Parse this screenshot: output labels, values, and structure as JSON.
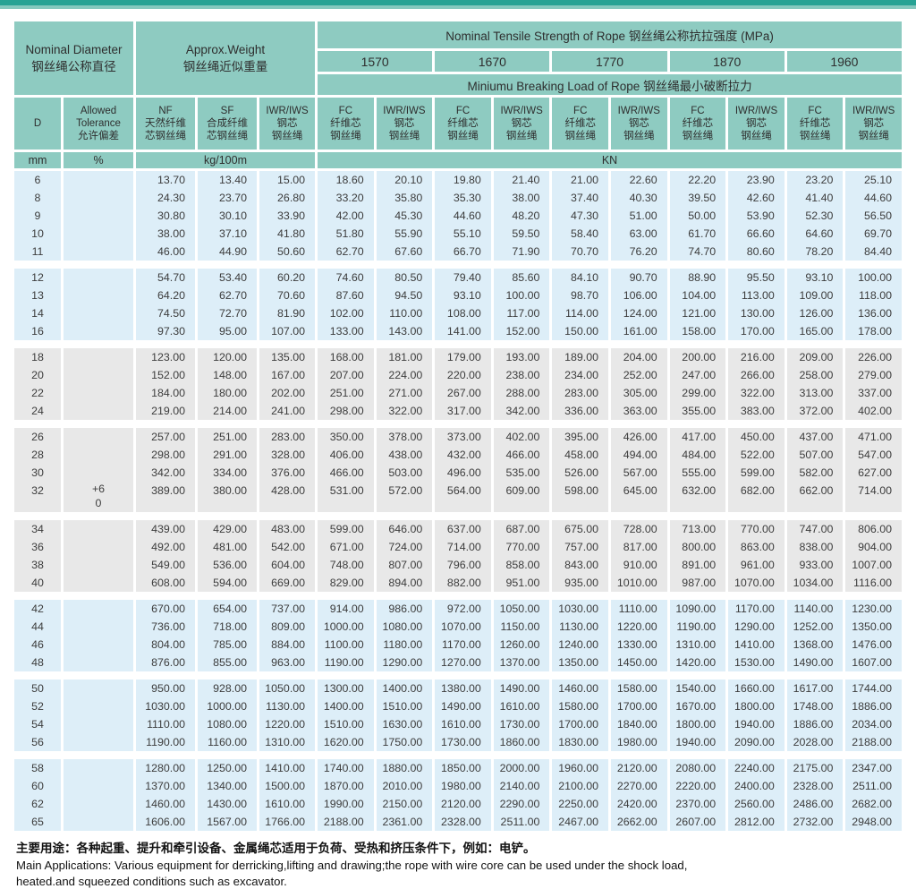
{
  "colors": {
    "header_teal": "#8ecbc1",
    "band_blue": "#ddeef8",
    "band_gray": "#e8e8e8",
    "topbar_dark": "#27a294",
    "topbar_light": "#85c8be"
  },
  "header": {
    "nominal_diameter_en": "Nominal Diameter",
    "nominal_diameter_cn": "钢丝绳公称直径",
    "approx_weight_en": "Approx.Weight",
    "approx_weight_cn": "钢丝绳近似重量",
    "tensile_title": "Nominal Tensile Strength of Rope 钢丝绳公称抗拉强度 (MPa)",
    "strength_grades": [
      "1570",
      "1670",
      "1770",
      "1870",
      "1960"
    ],
    "breaking_title": "Miniumu Breaking Load of Rope 钢丝绳最小破断拉力",
    "col_d": "D",
    "col_tolerance": [
      "Allowed",
      "Tolerance",
      "允许偏差"
    ],
    "col_nf": [
      "NF",
      "天然纤维",
      "芯钢丝绳"
    ],
    "col_sf": [
      "SF",
      "合成纤维",
      "芯钢丝绳"
    ],
    "col_iwr": [
      "IWR/IWS",
      "钢芯",
      "钢丝绳"
    ],
    "col_fc": [
      "FC",
      "纤维芯",
      "钢丝绳"
    ],
    "unit_mm": "mm",
    "unit_pct": "%",
    "unit_kg": "kg/100m",
    "unit_kn": "KN"
  },
  "tolerance": {
    "band_index": 3,
    "lines": [
      "+6",
      "0"
    ]
  },
  "bands": [
    {
      "bg": "blue",
      "rows": [
        [
          "6",
          "13.70",
          "13.40",
          "15.00",
          "18.60",
          "20.10",
          "19.80",
          "21.40",
          "21.00",
          "22.60",
          "22.20",
          "23.90",
          "23.20",
          "25.10"
        ],
        [
          "8",
          "24.30",
          "23.70",
          "26.80",
          "33.20",
          "35.80",
          "35.30",
          "38.00",
          "37.40",
          "40.30",
          "39.50",
          "42.60",
          "41.40",
          "44.60"
        ],
        [
          "9",
          "30.80",
          "30.10",
          "33.90",
          "42.00",
          "45.30",
          "44.60",
          "48.20",
          "47.30",
          "51.00",
          "50.00",
          "53.90",
          "52.30",
          "56.50"
        ],
        [
          "10",
          "38.00",
          "37.10",
          "41.80",
          "51.80",
          "55.90",
          "55.10",
          "59.50",
          "58.40",
          "63.00",
          "61.70",
          "66.60",
          "64.60",
          "69.70"
        ],
        [
          "11",
          "46.00",
          "44.90",
          "50.60",
          "62.70",
          "67.60",
          "66.70",
          "71.90",
          "70.70",
          "76.20",
          "74.70",
          "80.60",
          "78.20",
          "84.40"
        ]
      ]
    },
    {
      "bg": "blue",
      "rows": [
        [
          "12",
          "54.70",
          "53.40",
          "60.20",
          "74.60",
          "80.50",
          "79.40",
          "85.60",
          "84.10",
          "90.70",
          "88.90",
          "95.50",
          "93.10",
          "100.00"
        ],
        [
          "13",
          "64.20",
          "62.70",
          "70.60",
          "87.60",
          "94.50",
          "93.10",
          "100.00",
          "98.70",
          "106.00",
          "104.00",
          "113.00",
          "109.00",
          "118.00"
        ],
        [
          "14",
          "74.50",
          "72.70",
          "81.90",
          "102.00",
          "110.00",
          "108.00",
          "117.00",
          "114.00",
          "124.00",
          "121.00",
          "130.00",
          "126.00",
          "136.00"
        ],
        [
          "16",
          "97.30",
          "95.00",
          "107.00",
          "133.00",
          "143.00",
          "141.00",
          "152.00",
          "150.00",
          "161.00",
          "158.00",
          "170.00",
          "165.00",
          "178.00"
        ]
      ]
    },
    {
      "bg": "gray",
      "rows": [
        [
          "18",
          "123.00",
          "120.00",
          "135.00",
          "168.00",
          "181.00",
          "179.00",
          "193.00",
          "189.00",
          "204.00",
          "200.00",
          "216.00",
          "209.00",
          "226.00"
        ],
        [
          "20",
          "152.00",
          "148.00",
          "167.00",
          "207.00",
          "224.00",
          "220.00",
          "238.00",
          "234.00",
          "252.00",
          "247.00",
          "266.00",
          "258.00",
          "279.00"
        ],
        [
          "22",
          "184.00",
          "180.00",
          "202.00",
          "251.00",
          "271.00",
          "267.00",
          "288.00",
          "283.00",
          "305.00",
          "299.00",
          "322.00",
          "313.00",
          "337.00"
        ],
        [
          "24",
          "219.00",
          "214.00",
          "241.00",
          "298.00",
          "322.00",
          "317.00",
          "342.00",
          "336.00",
          "363.00",
          "355.00",
          "383.00",
          "372.00",
          "402.00"
        ]
      ]
    },
    {
      "bg": "gray",
      "extra": true,
      "rows": [
        [
          "26",
          "257.00",
          "251.00",
          "283.00",
          "350.00",
          "378.00",
          "373.00",
          "402.00",
          "395.00",
          "426.00",
          "417.00",
          "450.00",
          "437.00",
          "471.00"
        ],
        [
          "28",
          "298.00",
          "291.00",
          "328.00",
          "406.00",
          "438.00",
          "432.00",
          "466.00",
          "458.00",
          "494.00",
          "484.00",
          "522.00",
          "507.00",
          "547.00"
        ],
        [
          "30",
          "342.00",
          "334.00",
          "376.00",
          "466.00",
          "503.00",
          "496.00",
          "535.00",
          "526.00",
          "567.00",
          "555.00",
          "599.00",
          "582.00",
          "627.00"
        ],
        [
          "32",
          "389.00",
          "380.00",
          "428.00",
          "531.00",
          "572.00",
          "564.00",
          "609.00",
          "598.00",
          "645.00",
          "632.00",
          "682.00",
          "662.00",
          "714.00"
        ]
      ]
    },
    {
      "bg": "gray",
      "rows": [
        [
          "34",
          "439.00",
          "429.00",
          "483.00",
          "599.00",
          "646.00",
          "637.00",
          "687.00",
          "675.00",
          "728.00",
          "713.00",
          "770.00",
          "747.00",
          "806.00"
        ],
        [
          "36",
          "492.00",
          "481.00",
          "542.00",
          "671.00",
          "724.00",
          "714.00",
          "770.00",
          "757.00",
          "817.00",
          "800.00",
          "863.00",
          "838.00",
          "904.00"
        ],
        [
          "38",
          "549.00",
          "536.00",
          "604.00",
          "748.00",
          "807.00",
          "796.00",
          "858.00",
          "843.00",
          "910.00",
          "891.00",
          "961.00",
          "933.00",
          "1007.00"
        ],
        [
          "40",
          "608.00",
          "594.00",
          "669.00",
          "829.00",
          "894.00",
          "882.00",
          "951.00",
          "935.00",
          "1010.00",
          "987.00",
          "1070.00",
          "1034.00",
          "1116.00"
        ]
      ]
    },
    {
      "bg": "blue",
      "rows": [
        [
          "42",
          "670.00",
          "654.00",
          "737.00",
          "914.00",
          "986.00",
          "972.00",
          "1050.00",
          "1030.00",
          "1110.00",
          "1090.00",
          "1170.00",
          "1140.00",
          "1230.00"
        ],
        [
          "44",
          "736.00",
          "718.00",
          "809.00",
          "1000.00",
          "1080.00",
          "1070.00",
          "1150.00",
          "1130.00",
          "1220.00",
          "1190.00",
          "1290.00",
          "1252.00",
          "1350.00"
        ],
        [
          "46",
          "804.00",
          "785.00",
          "884.00",
          "1100.00",
          "1180.00",
          "1170.00",
          "1260.00",
          "1240.00",
          "1330.00",
          "1310.00",
          "1410.00",
          "1368.00",
          "1476.00"
        ],
        [
          "48",
          "876.00",
          "855.00",
          "963.00",
          "1190.00",
          "1290.00",
          "1270.00",
          "1370.00",
          "1350.00",
          "1450.00",
          "1420.00",
          "1530.00",
          "1490.00",
          "1607.00"
        ]
      ]
    },
    {
      "bg": "blue",
      "rows": [
        [
          "50",
          "950.00",
          "928.00",
          "1050.00",
          "1300.00",
          "1400.00",
          "1380.00",
          "1490.00",
          "1460.00",
          "1580.00",
          "1540.00",
          "1660.00",
          "1617.00",
          "1744.00"
        ],
        [
          "52",
          "1030.00",
          "1000.00",
          "1130.00",
          "1400.00",
          "1510.00",
          "1490.00",
          "1610.00",
          "1580.00",
          "1700.00",
          "1670.00",
          "1800.00",
          "1748.00",
          "1886.00"
        ],
        [
          "54",
          "1110.00",
          "1080.00",
          "1220.00",
          "1510.00",
          "1630.00",
          "1610.00",
          "1730.00",
          "1700.00",
          "1840.00",
          "1800.00",
          "1940.00",
          "1886.00",
          "2034.00"
        ],
        [
          "56",
          "1190.00",
          "1160.00",
          "1310.00",
          "1620.00",
          "1750.00",
          "1730.00",
          "1860.00",
          "1830.00",
          "1980.00",
          "1940.00",
          "2090.00",
          "2028.00",
          "2188.00"
        ]
      ]
    },
    {
      "bg": "blue",
      "rows": [
        [
          "58",
          "1280.00",
          "1250.00",
          "1410.00",
          "1740.00",
          "1880.00",
          "1850.00",
          "2000.00",
          "1960.00",
          "2120.00",
          "2080.00",
          "2240.00",
          "2175.00",
          "2347.00"
        ],
        [
          "60",
          "1370.00",
          "1340.00",
          "1500.00",
          "1870.00",
          "2010.00",
          "1980.00",
          "2140.00",
          "2100.00",
          "2270.00",
          "2220.00",
          "2400.00",
          "2328.00",
          "2511.00"
        ],
        [
          "62",
          "1460.00",
          "1430.00",
          "1610.00",
          "1990.00",
          "2150.00",
          "2120.00",
          "2290.00",
          "2250.00",
          "2420.00",
          "2370.00",
          "2560.00",
          "2486.00",
          "2682.00"
        ],
        [
          "65",
          "1606.00",
          "1567.00",
          "1766.00",
          "2188.00",
          "2361.00",
          "2328.00",
          "2511.00",
          "2467.00",
          "2662.00",
          "2607.00",
          "2812.00",
          "2732.00",
          "2948.00"
        ]
      ]
    }
  ],
  "footer": {
    "cn": "主要用途：各种起重、提升和牵引设备、金属绳芯适用于负荷、受热和挤压条件下，例如：电铲。",
    "en_line1": "Main Applications: Various equipment for derricking,lifting and drawing;the rope with wire core can be used under the shock load,",
    "en_line2": "heated.and squeezed conditions such as excavator."
  }
}
